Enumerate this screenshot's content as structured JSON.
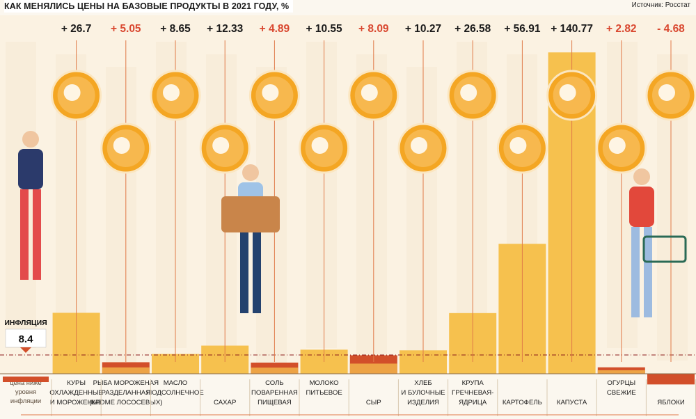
{
  "header": {
    "title": "КАК МЕНЯЛИСЬ ЦЕНЫ НА БАЗОВЫЕ ПРОДУКТЫ В 2021 ГОДУ, %",
    "source": "Источник: Росстат"
  },
  "inflation": {
    "label": "ИНФЛЯЦИЯ",
    "value": 8.4,
    "value_text": "8.4",
    "below_label": [
      "цена ниже",
      "уровня",
      "инфляции"
    ]
  },
  "colors": {
    "above_inflation": "#f6c14e",
    "below_inflation": "#d24f2a",
    "value_above_text": "#1a1a1a",
    "value_below_text": "#d9472f",
    "icon_circle": "#f4a623",
    "leader_line": "#e07a48"
  },
  "chart_data": {
    "type": "bar",
    "title": "КАК МЕНЯЛИСЬ ЦЕНЫ НА БАЗОВЫЕ ПРОДУКТЫ В 2021 ГОДУ, %",
    "reference_line": {
      "label": "ИНФЛЯЦИЯ",
      "value": 8.4
    },
    "categories": [
      [
        "КУРЫ",
        "ОХЛАЖДЕННЫЕ",
        "И МОРОЖЕНЫЕ"
      ],
      [
        "РЫБА МОРОЖЕНАЯ",
        "РАЗДЕЛАННАЯ",
        "(КРОМЕ ЛОСОСЕВЫХ)"
      ],
      [
        "МАСЛО",
        "ПОДСОЛНЕЧНОЕ"
      ],
      [
        "САХАР"
      ],
      [
        "СОЛЬ",
        "ПОВАРЕННАЯ",
        "ПИЩЕВАЯ"
      ],
      [
        "МОЛОКО",
        "ПИТЬЕВОЕ"
      ],
      [
        "СЫР"
      ],
      [
        "ХЛЕБ",
        "И БУЛОЧНЫЕ",
        "ИЗДЕЛИЯ"
      ],
      [
        "КРУПА",
        "ГРЕЧНЕВАЯ-",
        "ЯДРИЦА"
      ],
      [
        "КАРТОФЕЛЬ"
      ],
      [
        "КАПУСТА"
      ],
      [
        "ОГУРЦЫ",
        "СВЕЖИЕ"
      ],
      [
        "ЯБЛОКИ"
      ]
    ],
    "values": [
      26.7,
      5.05,
      8.65,
      12.33,
      4.89,
      10.55,
      8.09,
      10.27,
      26.58,
      56.91,
      140.77,
      2.82,
      -4.68
    ],
    "value_labels": [
      "+ 26.7",
      "+ 5.05",
      "+ 8.65",
      "+ 12.33",
      "+ 4.89",
      "+ 10.55",
      "+ 8.09",
      "+ 10.27",
      "+ 26.58",
      "+ 56.91",
      "+ 140.77",
      "+ 2.82",
      "- 4.68"
    ],
    "icons": [
      "chicken-icon",
      "fish-icon",
      "oil-bottle-icon",
      "sugar-cubes-icon",
      "salt-shaker-icon",
      "milk-carton-icon",
      "cheese-icon",
      "bread-icon",
      "buckwheat-bowl-icon",
      "potato-icon",
      "cabbage-icon",
      "cucumber-icon",
      "apple-icon"
    ],
    "icon_row": [
      "high",
      "low",
      "high",
      "low",
      "high",
      "low",
      "high",
      "low",
      "high",
      "low",
      "high",
      "low",
      "high"
    ]
  }
}
